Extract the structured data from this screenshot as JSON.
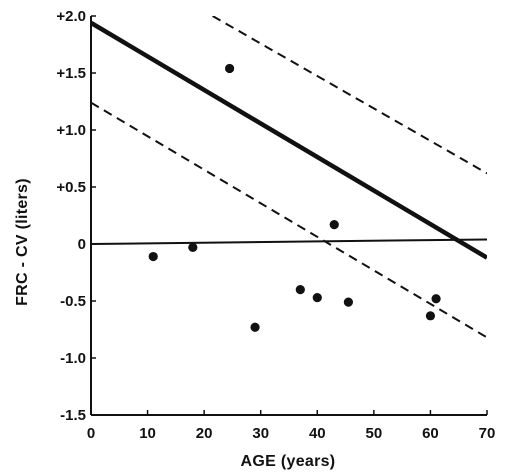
{
  "chart_data": {
    "type": "scatter",
    "title": "",
    "xlabel": "AGE (years)",
    "ylabel": "FRC - CV (liters)",
    "xlim": [
      0,
      70
    ],
    "ylim": [
      -1.5,
      2.0
    ],
    "x_ticks": [
      0,
      10,
      20,
      30,
      40,
      50,
      60,
      70
    ],
    "x_tick_labels": [
      "0",
      "10",
      "20",
      "30",
      "40",
      "50",
      "60",
      "70"
    ],
    "y_ticks": [
      2.0,
      1.5,
      1.0,
      0.5,
      0,
      -0.5,
      -1.0,
      -1.5
    ],
    "y_tick_labels": [
      "+2.0",
      "+1.5",
      "+1.0",
      "+0.5",
      "0",
      "-0.5",
      "-1.0",
      "-1.5"
    ],
    "grid": false,
    "points": [
      {
        "x": 11,
        "y": -0.11
      },
      {
        "x": 18,
        "y": -0.03
      },
      {
        "x": 24.5,
        "y": 1.54
      },
      {
        "x": 29,
        "y": -0.73
      },
      {
        "x": 37,
        "y": -0.4
      },
      {
        "x": 40,
        "y": -0.47
      },
      {
        "x": 43,
        "y": 0.17
      },
      {
        "x": 45.5,
        "y": -0.51
      },
      {
        "x": 60,
        "y": -0.63
      },
      {
        "x": 61,
        "y": -0.48
      }
    ],
    "lines": [
      {
        "style": "solid-thick",
        "color": "#111111",
        "x": [
          0,
          70
        ],
        "y": [
          1.94,
          -0.12
        ]
      },
      {
        "style": "dashed",
        "color": "#111111",
        "x": [
          21.5,
          70
        ],
        "y": [
          2.0,
          0.62
        ]
      },
      {
        "style": "dashed",
        "color": "#111111",
        "x": [
          0,
          70
        ],
        "y": [
          1.24,
          -0.82
        ]
      },
      {
        "style": "solid-thin",
        "color": "#111111",
        "x": [
          0,
          70
        ],
        "y": [
          0,
          0.04
        ]
      }
    ]
  }
}
